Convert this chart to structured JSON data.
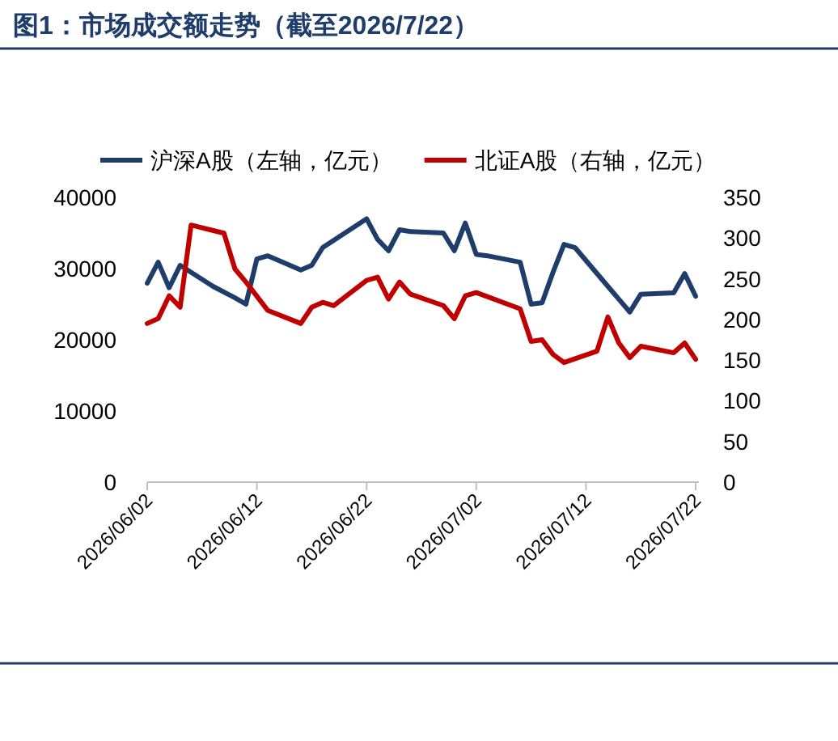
{
  "chart_data": {
    "type": "line",
    "title": "图1：市场成交额走势（截至2026/7/22）",
    "legend": "top",
    "grid": false,
    "xlim": [
      "2026-06-02",
      "2026-07-22"
    ],
    "xticks": [
      {
        "value": "2026-06-02",
        "label": "2026/06/02"
      },
      {
        "value": "2026-06-12",
        "label": "2026/06/12"
      },
      {
        "value": "2026-06-22",
        "label": "2026/06/22"
      },
      {
        "value": "2026-07-02",
        "label": "2026/07/02"
      },
      {
        "value": "2026-07-12",
        "label": "2026/07/12"
      },
      {
        "value": "2026-07-22",
        "label": "2026/07/22"
      }
    ],
    "ylim": [
      0,
      40000
    ],
    "yticks": [
      0,
      10000,
      20000,
      30000,
      40000
    ],
    "y2lim": [
      0,
      350
    ],
    "y2ticks": [
      0,
      50,
      100,
      150,
      200,
      250,
      300,
      350
    ],
    "series": [
      {
        "name": "沪深A股（左轴，亿元）",
        "color": "#1f3d6b",
        "x": [
          "2026-06-02",
          "2026-06-03",
          "2026-06-04",
          "2026-06-05",
          "2026-06-08",
          "2026-06-10",
          "2026-06-11",
          "2026-06-12",
          "2026-06-13",
          "2026-06-16",
          "2026-06-17",
          "2026-06-18",
          "2026-06-22",
          "2026-06-23",
          "2026-06-24",
          "2026-06-25",
          "2026-06-26",
          "2026-06-29",
          "2026-06-30",
          "2026-07-01",
          "2026-07-02",
          "2026-07-03",
          "2026-07-06",
          "2026-07-07",
          "2026-07-08",
          "2026-07-09",
          "2026-07-10",
          "2026-07-11",
          "2026-07-14",
          "2026-07-15",
          "2026-07-16",
          "2026-07-17",
          "2026-07-20",
          "2026-07-21",
          "2026-07-22"
        ],
        "values": [
          27950,
          30900,
          27300,
          30450,
          27500,
          25900,
          25000,
          31360,
          31800,
          29800,
          30450,
          32950,
          37000,
          34100,
          32500,
          35450,
          35200,
          35000,
          32500,
          36400,
          32000,
          31800,
          30900,
          25000,
          25200,
          29500,
          33400,
          32950,
          27500,
          25700,
          23900,
          26400,
          26600,
          29300,
          26100
        ]
      },
      {
        "name": "北证A股（右轴，亿元）",
        "color": "#c00000",
        "axis": "y2",
        "x": [
          "2026-06-02",
          "2026-06-03",
          "2026-06-04",
          "2026-06-05",
          "2026-06-06",
          "2026-06-09",
          "2026-06-10",
          "2026-06-11",
          "2026-06-13",
          "2026-06-16",
          "2026-06-17",
          "2026-06-18",
          "2026-06-19",
          "2026-06-22",
          "2026-06-23",
          "2026-06-24",
          "2026-06-25",
          "2026-06-26",
          "2026-06-29",
          "2026-06-30",
          "2026-07-01",
          "2026-07-02",
          "2026-07-06",
          "2026-07-07",
          "2026-07-08",
          "2026-07-09",
          "2026-07-10",
          "2026-07-13",
          "2026-07-14",
          "2026-07-15",
          "2026-07-16",
          "2026-07-17",
          "2026-07-20",
          "2026-07-21",
          "2026-07-22"
        ],
        "values": [
          195,
          201,
          229,
          215,
          316,
          306,
          262,
          246,
          211,
          195,
          215,
          221,
          217,
          248,
          252,
          225,
          246,
          231,
          217,
          201,
          229,
          233,
          213,
          173,
          175,
          157,
          147,
          161,
          203,
          171,
          153,
          167,
          159,
          171,
          151
        ]
      }
    ]
  }
}
